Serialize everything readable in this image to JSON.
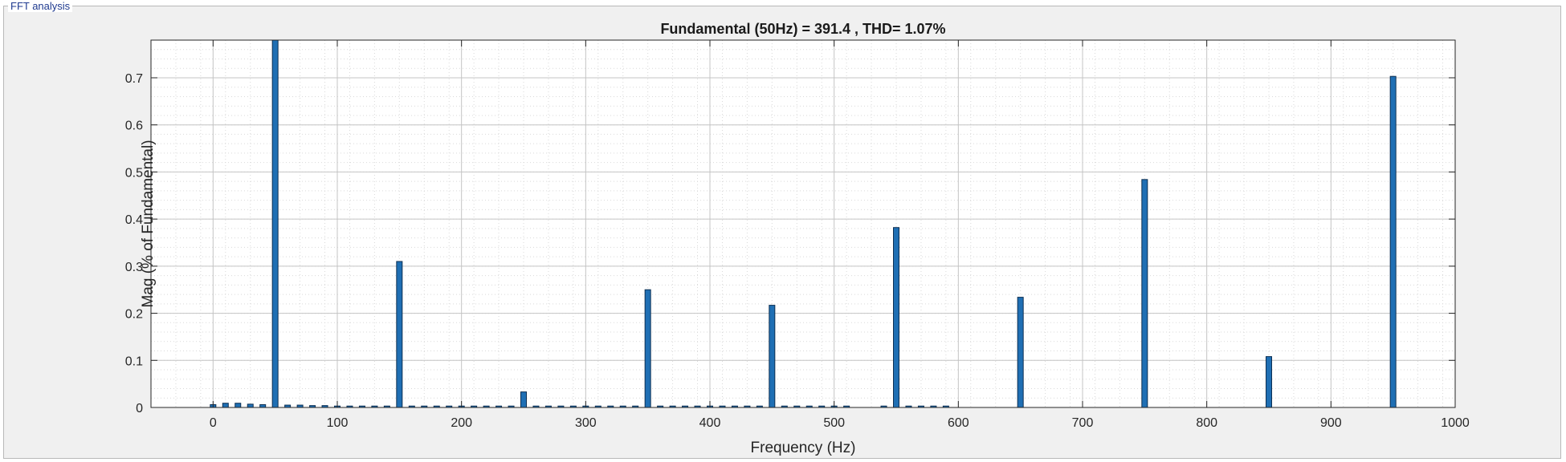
{
  "panel": {
    "title": "FFT analysis"
  },
  "chart_data": {
    "type": "bar",
    "title": "Fundamental (50Hz) = 391.4 , THD= 1.07%",
    "xlabel": "Frequency (Hz)",
    "ylabel": "Mag (% of Fundamental)",
    "xlim": [
      -50,
      1000
    ],
    "ylim": [
      0,
      0.78
    ],
    "xticks": [
      0,
      100,
      200,
      300,
      400,
      500,
      600,
      700,
      800,
      900,
      1000
    ],
    "yticks": [
      0,
      0.1,
      0.2,
      0.3,
      0.4,
      0.5,
      0.6,
      0.7
    ],
    "grid": true,
    "minor_grid": true,
    "bar_color": "#1f6fb4",
    "x": [
      0,
      10,
      20,
      30,
      40,
      50,
      60,
      70,
      80,
      90,
      100,
      110,
      120,
      130,
      140,
      150,
      160,
      170,
      180,
      190,
      200,
      210,
      220,
      230,
      240,
      250,
      260,
      270,
      280,
      290,
      300,
      310,
      320,
      330,
      340,
      350,
      360,
      370,
      380,
      390,
      400,
      410,
      420,
      430,
      440,
      450,
      460,
      470,
      480,
      490,
      500,
      510,
      540,
      550,
      560,
      570,
      580,
      590,
      650,
      750,
      850,
      950
    ],
    "values": [
      0.006,
      0.009,
      0.009,
      0.007,
      0.006,
      0.78,
      0.005,
      0.005,
      0.004,
      0.004,
      0.003,
      0.003,
      0.003,
      0.003,
      0.003,
      0.31,
      0.003,
      0.003,
      0.003,
      0.003,
      0.003,
      0.003,
      0.003,
      0.003,
      0.003,
      0.033,
      0.003,
      0.003,
      0.003,
      0.003,
      0.003,
      0.003,
      0.003,
      0.003,
      0.003,
      0.25,
      0.003,
      0.003,
      0.003,
      0.003,
      0.003,
      0.003,
      0.003,
      0.003,
      0.003,
      0.217,
      0.003,
      0.003,
      0.003,
      0.003,
      0.003,
      0.003,
      0.003,
      0.382,
      0.003,
      0.003,
      0.003,
      0.003,
      0.234,
      0.484,
      0.108,
      0.703
    ]
  }
}
